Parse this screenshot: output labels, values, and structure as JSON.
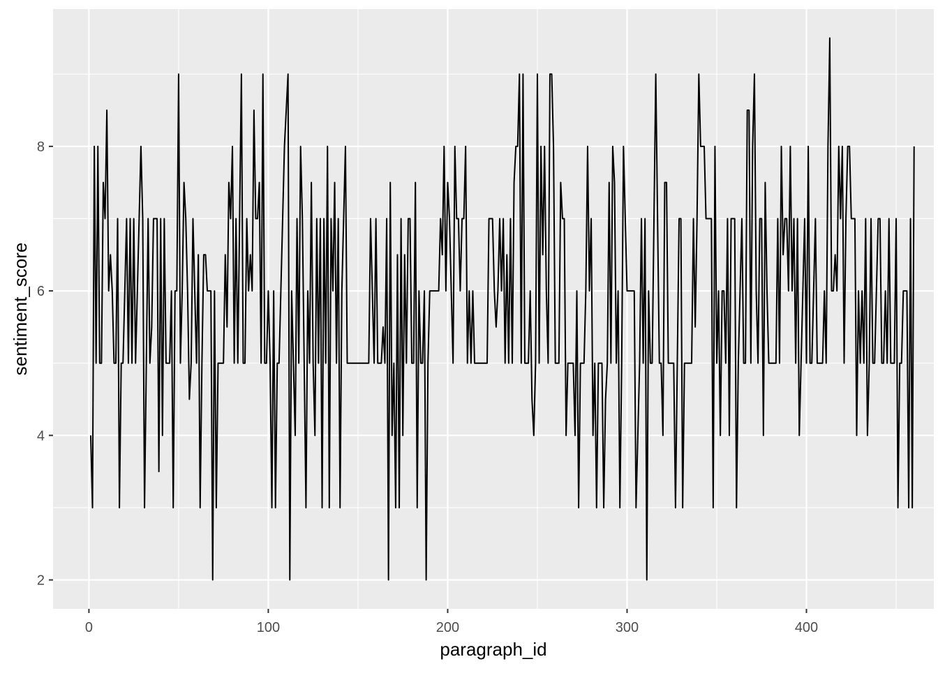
{
  "chart_data": {
    "type": "line",
    "title": "",
    "xlabel": "paragraph_id",
    "ylabel": "sentiment_score",
    "xlim": [
      -20,
      471
    ],
    "ylim": [
      1.6,
      9.9
    ],
    "x_ticks": [
      0,
      100,
      200,
      300,
      400
    ],
    "y_ticks": [
      2,
      4,
      6,
      8
    ],
    "x_tick_labels": [
      "0",
      "100",
      "200",
      "300",
      "400"
    ],
    "y_tick_labels": [
      "2",
      "4",
      "6",
      "8"
    ],
    "grid": true,
    "legend": "none",
    "colors": {
      "panel": "#EBEBEB",
      "grid": "#FFFFFF",
      "line": "#000000",
      "tick_text": "#4D4D4D",
      "axis_title": "#000000"
    },
    "series": [
      {
        "x_start": 1,
        "x_step": 1,
        "values": [
          4,
          3,
          8,
          5,
          8,
          5,
          5,
          7.5,
          7,
          8.5,
          6,
          6.5,
          6,
          5,
          5,
          7,
          3,
          5,
          5,
          6,
          7,
          5,
          7,
          5,
          7,
          5,
          6,
          7,
          8,
          7,
          3,
          5,
          7,
          5,
          5.5,
          7,
          7,
          7,
          3.5,
          7,
          4,
          7,
          5,
          5,
          5,
          6,
          3,
          6,
          6,
          9,
          5,
          6,
          7.5,
          7,
          6,
          4.5,
          5,
          7,
          6,
          5,
          6.5,
          3,
          5,
          6.5,
          6.5,
          6,
          6,
          6,
          2,
          6,
          3,
          5,
          5,
          5,
          5,
          6.5,
          5.5,
          7.5,
          7,
          8,
          5,
          7,
          5,
          7,
          9,
          5,
          5,
          7,
          6,
          6.5,
          6,
          8.5,
          7,
          7,
          7.5,
          5,
          9,
          5,
          5,
          6,
          5,
          3,
          6,
          3,
          5,
          5,
          6,
          7,
          8,
          8.5,
          9,
          2,
          6,
          5,
          4,
          7,
          5,
          8,
          7,
          5,
          3,
          6,
          5,
          7.5,
          5,
          4,
          7,
          5,
          7,
          3,
          7,
          5,
          8,
          3,
          7,
          6,
          7.5,
          5,
          7,
          3,
          6,
          7,
          8,
          5,
          5,
          5,
          5,
          5,
          5,
          5,
          5,
          5,
          5,
          5,
          5,
          5,
          7,
          6,
          5,
          7,
          5,
          5,
          5,
          5.5,
          5,
          7,
          2,
          7.5,
          4,
          5,
          3,
          6.5,
          3,
          7,
          4,
          6.5,
          5,
          7,
          7,
          5,
          5,
          7.5,
          3,
          6,
          5,
          5,
          6,
          2,
          5,
          6,
          6,
          6,
          6,
          6,
          6,
          7,
          6.5,
          8,
          6,
          7.5,
          7,
          6,
          5,
          8,
          7,
          7,
          6,
          7,
          7,
          8,
          5,
          6,
          5,
          6,
          5,
          5,
          5,
          5,
          5,
          5,
          5,
          5,
          7,
          7,
          7,
          6,
          5.5,
          6,
          7,
          6,
          7,
          5,
          6.5,
          5,
          7,
          5,
          7.5,
          8,
          8,
          9,
          5,
          9,
          5,
          5,
          5,
          6,
          4.5,
          4,
          5,
          9,
          5,
          8,
          6.5,
          8,
          6,
          5,
          9,
          9,
          8,
          5,
          5,
          5,
          7.5,
          7,
          7,
          4,
          5,
          5,
          5,
          5,
          4,
          6,
          3,
          5,
          5,
          5,
          6,
          8,
          6,
          7,
          4,
          5,
          3,
          5,
          5,
          5,
          3,
          4.5,
          5,
          7.5,
          5,
          8,
          7.5,
          5,
          6,
          3,
          5,
          8,
          7,
          6,
          6,
          6,
          6,
          6,
          3,
          4,
          5,
          7,
          5,
          7,
          2,
          6,
          5,
          5,
          7,
          9,
          7,
          5,
          5,
          4,
          7.5,
          7.5,
          5,
          5,
          5,
          5,
          3,
          5,
          7,
          7,
          3,
          5,
          5,
          5,
          5,
          5,
          7,
          5.5,
          7,
          9,
          8,
          8,
          8,
          7,
          7,
          7,
          7,
          3,
          8,
          5,
          6,
          4,
          6,
          6,
          5,
          7,
          4,
          7,
          7,
          7,
          3,
          5,
          6,
          7,
          5,
          5,
          8.5,
          8.5,
          5,
          8,
          9,
          6,
          5,
          7,
          7,
          4,
          7.5,
          6,
          5,
          5,
          5,
          5,
          5,
          7,
          5,
          8,
          6.5,
          7,
          7,
          6,
          8,
          6,
          7,
          5,
          7,
          4,
          5,
          6,
          7,
          5,
          8,
          5,
          5,
          6,
          7,
          5,
          5,
          5,
          5,
          6,
          5,
          8,
          9.5,
          6,
          6,
          6.5,
          6,
          8,
          7,
          8,
          5,
          7,
          8,
          8,
          7,
          7,
          7,
          4,
          6,
          5,
          6,
          5,
          7,
          4,
          5,
          7,
          5,
          5,
          6,
          7,
          7,
          5,
          5,
          6,
          5,
          7,
          5,
          5,
          5,
          7,
          3,
          5,
          5,
          6,
          6,
          6,
          3,
          7,
          3,
          8
        ]
      }
    ]
  }
}
